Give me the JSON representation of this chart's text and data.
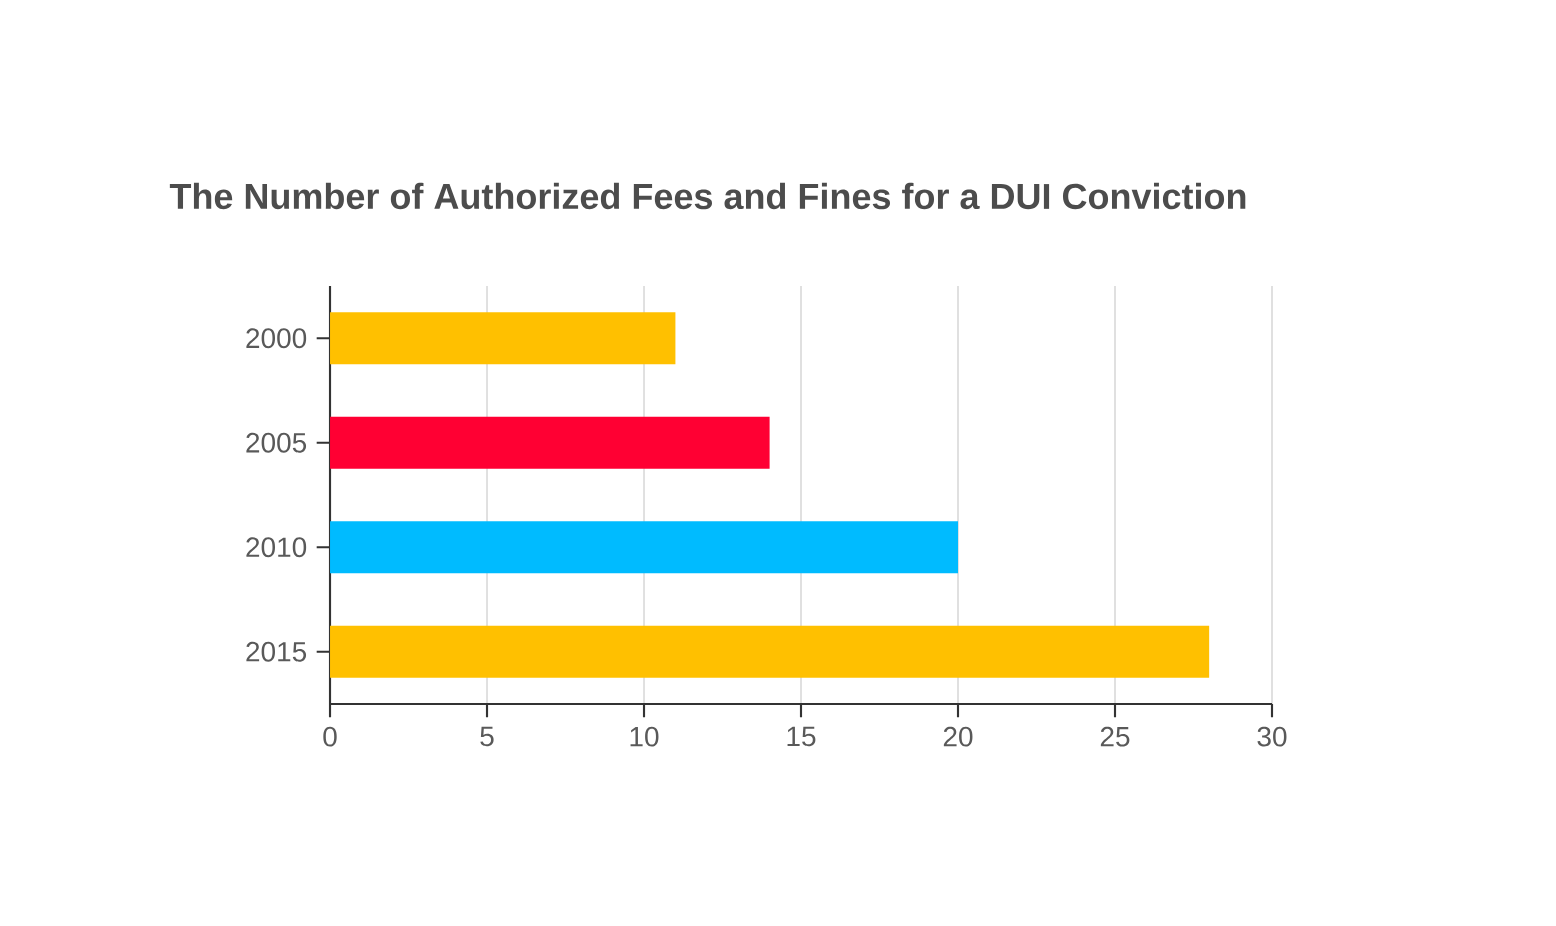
{
  "chart_data": {
    "type": "bar",
    "orientation": "horizontal",
    "title": "The Number of Authorized Fees and Fines for a DUI Conviction",
    "categories": [
      "2000",
      "2005",
      "2010",
      "2015"
    ],
    "values": [
      11,
      14,
      20,
      28
    ],
    "colors": [
      "#ffc000",
      "#ff0033",
      "#00bbff",
      "#ffc000"
    ],
    "xlim": [
      0,
      30
    ],
    "xticks": [
      0,
      5,
      10,
      15,
      20,
      25,
      30
    ],
    "grid": "x"
  }
}
